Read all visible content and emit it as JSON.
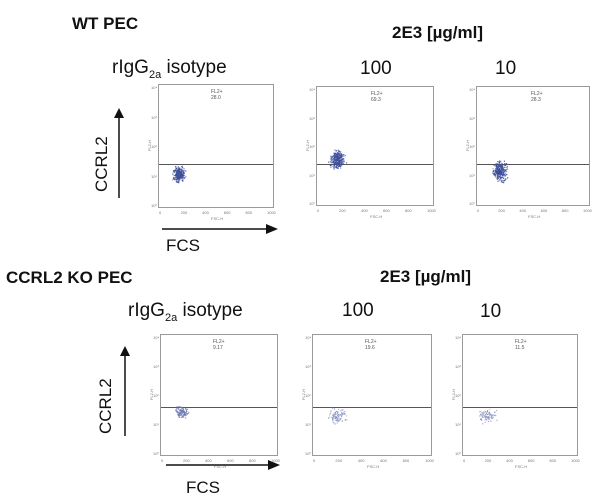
{
  "panels": [
    {
      "title": "WT PEC",
      "treatment_header": "2E3 [µg/ml]",
      "isotype_label": "rIgG",
      "isotype_sub": "2a",
      "isotype_suffix": " isotype",
      "concentrations": [
        "100",
        "10"
      ],
      "y_axis_word": "CCRL2",
      "x_axis_word": "FCS",
      "plots": [
        {
          "gate_label": "FL2+",
          "percent": "28.0"
        },
        {
          "gate_label": "FL2+",
          "percent": "69.3"
        },
        {
          "gate_label": "FL2+",
          "percent": "28.3"
        }
      ]
    },
    {
      "title": "CCRL2 KO PEC",
      "treatment_header": "2E3 [µg/ml]",
      "isotype_label": "rIgG",
      "isotype_sub": "2a",
      "isotype_suffix": " isotype",
      "concentrations": [
        "100",
        "10"
      ],
      "y_axis_word": "CCRL2",
      "x_axis_word": "FCS",
      "plots": [
        {
          "gate_label": "FL2+",
          "percent": "9.17"
        },
        {
          "gate_label": "FL2+",
          "percent": "19.6"
        },
        {
          "gate_label": "FL2+",
          "percent": "11.5"
        }
      ]
    }
  ],
  "plot_axis": {
    "y_name": "FL2-H",
    "x_name": "FSC-H",
    "y_ticks": [
      "10⁴",
      "10³",
      "10²",
      "10¹",
      "10⁰"
    ],
    "x_ticks": [
      "0",
      "200",
      "400",
      "600",
      "800",
      "1000"
    ]
  }
}
